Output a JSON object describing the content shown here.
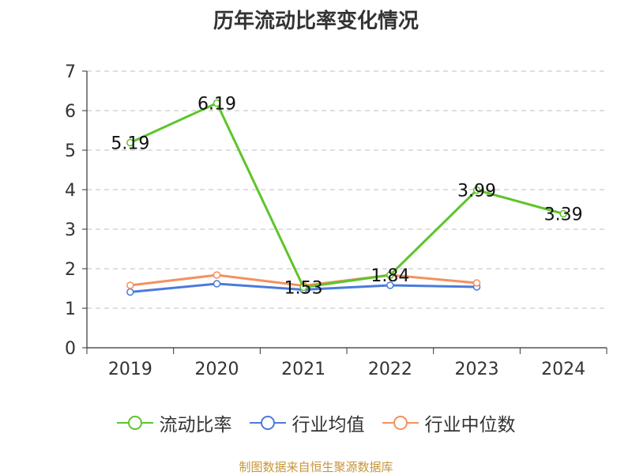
{
  "chart_data": {
    "type": "line",
    "title": "历年流动比率变化情况",
    "categories": [
      "2019",
      "2020",
      "2021",
      "2022",
      "2023",
      "2024"
    ],
    "ylim": [
      0,
      7
    ],
    "yticks": [
      "0",
      "1",
      "2",
      "3",
      "4",
      "5",
      "6",
      "7"
    ],
    "grid": true,
    "legend_position": "bottom",
    "series": [
      {
        "name": "流动比率",
        "color": "#5ec42b",
        "values": [
          5.19,
          6.19,
          1.53,
          1.84,
          3.99,
          3.39
        ],
        "labels": [
          "5.19",
          "6.19",
          "1.53",
          "1.84",
          "3.99",
          "3.39"
        ]
      },
      {
        "name": "行业均值",
        "color": "#4a7bdc",
        "values": [
          1.41,
          1.62,
          1.47,
          1.58,
          1.54,
          null
        ]
      },
      {
        "name": "行业中位数",
        "color": "#f4915e",
        "values": [
          1.58,
          1.84,
          1.57,
          1.84,
          1.64,
          null
        ]
      }
    ]
  },
  "source": "制图数据来自恒生聚源数据库"
}
